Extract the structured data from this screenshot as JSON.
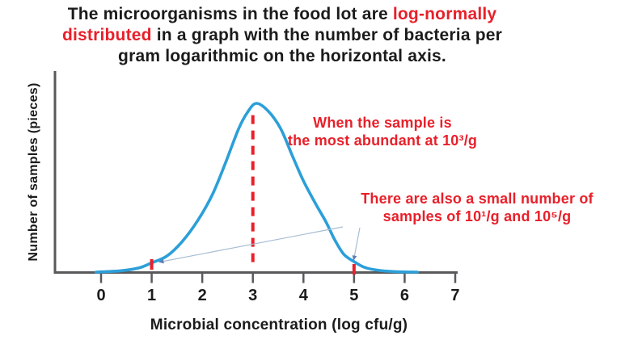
{
  "title": {
    "line1_black": "The microorganisms in the food lot are ",
    "line1_red": "log-normally",
    "line2_red": "distributed",
    "line2_black": " in a graph with the number of bacteria per",
    "line3": "gram logarithmic on the horizontal axis."
  },
  "annotations": {
    "peak": {
      "line1": "When the sample is",
      "line2": "the most abundant at 10³/g"
    },
    "tails": {
      "line1": "There are also a small number of",
      "line2": "samples of 10¹/g and 10⁵/g"
    }
  },
  "chart_data": {
    "type": "area",
    "curve_name": "log-normal distribution of microorganisms",
    "xlabel": "Microbial concentration (log cfu/g)",
    "ylabel": "Number of samples (pieces)",
    "x_ticks": [
      "0",
      "1",
      "2",
      "3",
      "4",
      "5",
      "6",
      "7"
    ],
    "xlim": [
      0,
      7
    ],
    "grid": false,
    "peak_marker_x": 3,
    "tail_marker_xs": [
      1,
      5
    ],
    "curve_points": [
      {
        "x": -0.1,
        "y": 0.0
      },
      {
        "x": 0.4,
        "y": 0.008
      },
      {
        "x": 0.75,
        "y": 0.025
      },
      {
        "x": 1.0,
        "y": 0.055
      },
      {
        "x": 1.3,
        "y": 0.095
      },
      {
        "x": 1.6,
        "y": 0.18
      },
      {
        "x": 1.92,
        "y": 0.31
      },
      {
        "x": 2.2,
        "y": 0.46
      },
      {
        "x": 2.45,
        "y": 0.64
      },
      {
        "x": 2.72,
        "y": 0.85
      },
      {
        "x": 2.9,
        "y": 0.95
      },
      {
        "x": 3.07,
        "y": 1.0
      },
      {
        "x": 3.3,
        "y": 0.955
      },
      {
        "x": 3.55,
        "y": 0.85
      },
      {
        "x": 3.78,
        "y": 0.69
      },
      {
        "x": 4.0,
        "y": 0.54
      },
      {
        "x": 4.25,
        "y": 0.4
      },
      {
        "x": 4.45,
        "y": 0.295
      },
      {
        "x": 4.62,
        "y": 0.19
      },
      {
        "x": 4.8,
        "y": 0.105
      },
      {
        "x": 5.0,
        "y": 0.062
      },
      {
        "x": 5.2,
        "y": 0.029
      },
      {
        "x": 5.45,
        "y": 0.012
      },
      {
        "x": 5.8,
        "y": 0.003
      },
      {
        "x": 6.25,
        "y": 0.0
      }
    ],
    "dashed_peak_line": {
      "x": 3,
      "y_top_rel": 0.93
    },
    "red_tick_marks": [
      {
        "x": 1
      },
      {
        "x": 5
      }
    ]
  },
  "colors": {
    "red": "#e8202a",
    "curve_blue": "#2b9fd8",
    "axis_gray": "#58595b",
    "text_black": "#1b1b1b",
    "arrow_line": "#a7bdd3",
    "arrow_head": "#5e7fb8"
  }
}
